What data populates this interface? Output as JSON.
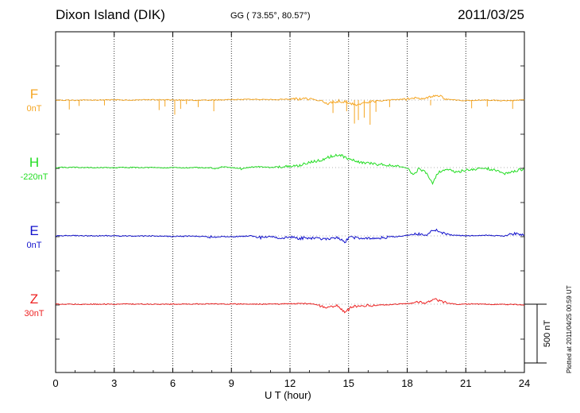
{
  "header": {
    "station": "Dixon Island (DIK)",
    "coords": "GG ( 73.55°,  80.57°)",
    "date": "2011/03/25"
  },
  "footer": {
    "plotted": "Plotted at 2011/04/25 00:59 UT"
  },
  "chart_data": {
    "type": "line",
    "xlabel": "U T (hour)",
    "xlim": [
      0,
      24
    ],
    "xticks": [
      "0",
      "3",
      "6",
      "9",
      "12",
      "15",
      "18",
      "21",
      "24"
    ],
    "grid": true,
    "scale_bar": {
      "label": "500 nT",
      "value_nT": 500
    },
    "series": [
      {
        "name": "F",
        "offset_label": "0nT",
        "color": "#f5a623",
        "points": [
          [
            0,
            0
          ],
          [
            1,
            -2
          ],
          [
            2,
            0
          ],
          [
            3,
            2
          ],
          [
            4,
            -1
          ],
          [
            5,
            3
          ],
          [
            6,
            1
          ],
          [
            7,
            -2
          ],
          [
            8,
            0
          ],
          [
            9,
            4
          ],
          [
            10,
            6
          ],
          [
            11,
            4
          ],
          [
            12,
            8
          ],
          [
            13,
            12
          ],
          [
            13.5,
            -5
          ],
          [
            14,
            -30
          ],
          [
            14.5,
            -8
          ],
          [
            15,
            -20
          ],
          [
            15.5,
            -45
          ],
          [
            16,
            -15
          ],
          [
            16.5,
            -10
          ],
          [
            17,
            0
          ],
          [
            17.5,
            5
          ],
          [
            18,
            10
          ],
          [
            19,
            18
          ],
          [
            19.5,
            45
          ],
          [
            20,
            8
          ],
          [
            20.5,
            0
          ],
          [
            21,
            -4
          ],
          [
            22,
            0
          ],
          [
            23,
            -6
          ],
          [
            23.5,
            -2
          ],
          [
            24,
            2
          ]
        ],
        "spikes": [
          [
            0.7,
            -80
          ],
          [
            1.2,
            -50
          ],
          [
            2.5,
            -45
          ],
          [
            5.3,
            -85
          ],
          [
            5.6,
            -55
          ],
          [
            6.1,
            -125
          ],
          [
            6.4,
            -75
          ],
          [
            6.7,
            -35
          ],
          [
            7.3,
            -60
          ],
          [
            8.1,
            -95
          ],
          [
            14.2,
            -110
          ],
          [
            14.9,
            -95
          ],
          [
            15.3,
            -200
          ],
          [
            15.5,
            -170
          ],
          [
            15.8,
            -150
          ],
          [
            16.1,
            -210
          ],
          [
            16.4,
            -100
          ],
          [
            17.1,
            -60
          ],
          [
            19.2,
            -45
          ],
          [
            21.3,
            -70
          ],
          [
            22.1,
            -55
          ],
          [
            23.4,
            -75
          ]
        ]
      },
      {
        "name": "H",
        "offset_label": "-220nT",
        "color": "#22dd22",
        "points": [
          [
            0,
            0
          ],
          [
            1,
            2
          ],
          [
            2,
            0
          ],
          [
            3,
            -1
          ],
          [
            4,
            1
          ],
          [
            5,
            0
          ],
          [
            6,
            -2
          ],
          [
            7,
            0
          ],
          [
            8,
            -3
          ],
          [
            8.2,
            -10
          ],
          [
            8.5,
            5
          ],
          [
            9,
            0
          ],
          [
            9.5,
            -10
          ],
          [
            10,
            5
          ],
          [
            10.5,
            8
          ],
          [
            11,
            0
          ],
          [
            11.5,
            10
          ],
          [
            12,
            8
          ],
          [
            12.5,
            20
          ],
          [
            13,
            45
          ],
          [
            13.5,
            60
          ],
          [
            14,
            90
          ],
          [
            14.5,
            110
          ],
          [
            15,
            75
          ],
          [
            15.5,
            50
          ],
          [
            16,
            35
          ],
          [
            17,
            20
          ],
          [
            17.5,
            10
          ],
          [
            18,
            -5
          ],
          [
            18.3,
            -60
          ],
          [
            18.6,
            -10
          ],
          [
            19,
            -45
          ],
          [
            19.3,
            -130
          ],
          [
            19.6,
            -40
          ],
          [
            20,
            -10
          ],
          [
            20.5,
            -40
          ],
          [
            21,
            -20
          ],
          [
            22,
            -5
          ],
          [
            22.5,
            -25
          ],
          [
            23,
            -50
          ],
          [
            23.5,
            -30
          ],
          [
            24,
            -10
          ]
        ]
      },
      {
        "name": "E",
        "offset_label": "0nT",
        "color": "#1111cc",
        "points": [
          [
            0,
            0
          ],
          [
            1,
            2
          ],
          [
            2,
            0
          ],
          [
            3,
            1
          ],
          [
            4,
            -2
          ],
          [
            5,
            0
          ],
          [
            6,
            -5
          ],
          [
            7,
            -2
          ],
          [
            8,
            -10
          ],
          [
            8.5,
            -5
          ],
          [
            9,
            -8
          ],
          [
            10,
            0
          ],
          [
            10.5,
            -15
          ],
          [
            11,
            -5
          ],
          [
            11.5,
            -18
          ],
          [
            12,
            -10
          ],
          [
            12.5,
            -20
          ],
          [
            13,
            -18
          ],
          [
            13.5,
            -25
          ],
          [
            14,
            -30
          ],
          [
            14.5,
            -15
          ],
          [
            14.8,
            -60
          ],
          [
            15,
            -10
          ],
          [
            15.5,
            -20
          ],
          [
            16,
            -25
          ],
          [
            17,
            -12
          ],
          [
            17.5,
            -5
          ],
          [
            18,
            5
          ],
          [
            18.5,
            15
          ],
          [
            19,
            5
          ],
          [
            19.3,
            55
          ],
          [
            19.6,
            45
          ],
          [
            20,
            10
          ],
          [
            21,
            0
          ],
          [
            22,
            5
          ],
          [
            23,
            0
          ],
          [
            23.5,
            20
          ],
          [
            24,
            8
          ]
        ]
      },
      {
        "name": "Z",
        "offset_label": "30nT",
        "color": "#ee2222",
        "points": [
          [
            0,
            0
          ],
          [
            2,
            0
          ],
          [
            4,
            1
          ],
          [
            6,
            0
          ],
          [
            8,
            2
          ],
          [
            10,
            0
          ],
          [
            11,
            1
          ],
          [
            12,
            3
          ],
          [
            13,
            5
          ],
          [
            13.5,
            -10
          ],
          [
            14,
            -30
          ],
          [
            14.4,
            -10
          ],
          [
            14.8,
            -70
          ],
          [
            15.2,
            -20
          ],
          [
            16,
            -10
          ],
          [
            17,
            -5
          ],
          [
            18,
            5
          ],
          [
            18.5,
            18
          ],
          [
            19,
            12
          ],
          [
            19.5,
            40
          ],
          [
            20,
            10
          ],
          [
            20.5,
            0
          ],
          [
            21,
            2
          ],
          [
            22,
            0
          ],
          [
            23,
            -2
          ],
          [
            24,
            -5
          ]
        ]
      }
    ]
  }
}
